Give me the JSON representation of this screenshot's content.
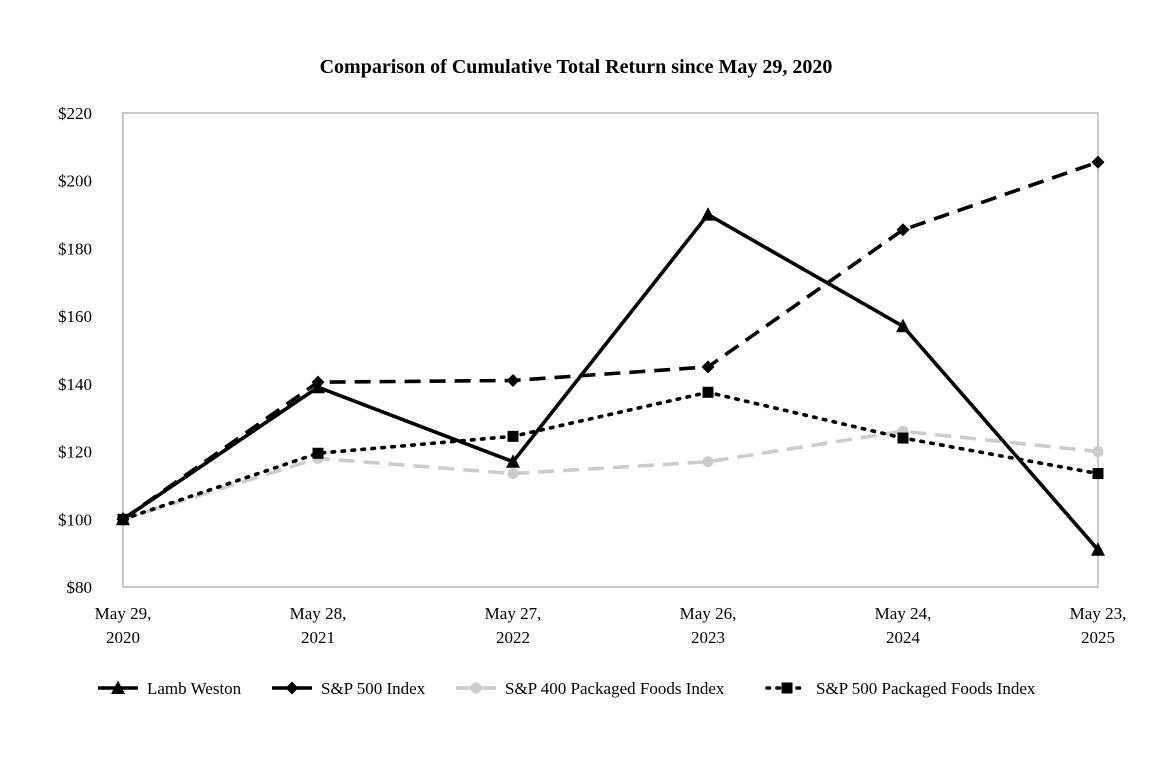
{
  "chart_data": {
    "type": "line",
    "title": "Comparison of Cumulative Total Return since May 29, 2020",
    "xlabel": "",
    "ylabel": "",
    "categories": [
      [
        "May 29,",
        "2020"
      ],
      [
        "May 28,",
        "2021"
      ],
      [
        "May 27,",
        "2022"
      ],
      [
        "May 26,",
        "2023"
      ],
      [
        "May 24,",
        "2024"
      ],
      [
        "May 23,",
        "2025"
      ]
    ],
    "ylim": [
      80,
      220
    ],
    "yticks": [
      80,
      100,
      120,
      140,
      160,
      180,
      200,
      220
    ],
    "ytick_labels": [
      "$80",
      "$100",
      "$120",
      "$140",
      "$160",
      "$180",
      "$200",
      "$220"
    ],
    "grid": false,
    "legend_position": "bottom",
    "series": [
      {
        "name": "Lamb Weston",
        "values": [
          100,
          139,
          117,
          190,
          157,
          91
        ],
        "color": "#000000",
        "dash": "solid",
        "marker": "triangle"
      },
      {
        "name": "S&P 500 Index",
        "values": [
          100,
          140.5,
          141,
          145,
          185.5,
          205.5
        ],
        "color": "#000000",
        "dash": "dashed",
        "marker": "diamond"
      },
      {
        "name": "S&P 400 Packaged Foods Index",
        "values": [
          100,
          118,
          113.5,
          117,
          126,
          120
        ],
        "color": "#cccccc",
        "dash": "dashed",
        "marker": "circle"
      },
      {
        "name": "S&P 500 Packaged Foods Index",
        "values": [
          100,
          119.5,
          124.5,
          137.5,
          124,
          113.5
        ],
        "color": "#000000",
        "dash": "dotted",
        "marker": "square"
      }
    ]
  }
}
